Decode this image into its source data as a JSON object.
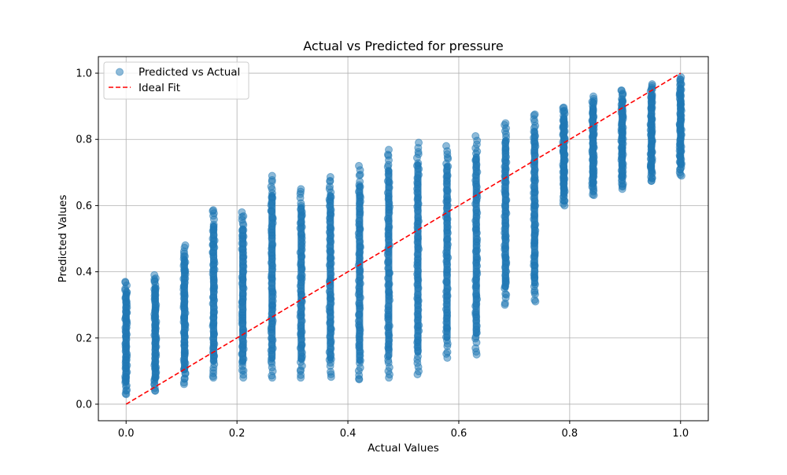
{
  "chart_data": {
    "type": "scatter",
    "title": "Actual vs Predicted for pressure",
    "xlabel": "Actual Values",
    "ylabel": "Predicted Values",
    "xlim": [
      -0.05,
      1.05
    ],
    "ylim": [
      -0.05,
      1.05
    ],
    "xticks": [
      "0.0",
      "0.2",
      "0.4",
      "0.6",
      "0.8",
      "1.0"
    ],
    "yticks": [
      "0.0",
      "0.2",
      "0.4",
      "0.6",
      "0.8",
      "1.0"
    ],
    "grid": true,
    "legend_position": "top-left",
    "series": [
      {
        "name": "Predicted vs Actual",
        "kind": "scatter",
        "color": "#1f77b4",
        "alpha": 0.5,
        "columns": [
          {
            "x": 0.0,
            "min": 0.03,
            "max": 0.37
          },
          {
            "x": 0.0526,
            "min": 0.04,
            "max": 0.39
          },
          {
            "x": 0.1053,
            "min": 0.06,
            "max": 0.48
          },
          {
            "x": 0.1579,
            "min": 0.08,
            "max": 0.59
          },
          {
            "x": 0.2105,
            "min": 0.08,
            "max": 0.58
          },
          {
            "x": 0.2632,
            "min": 0.08,
            "max": 0.69
          },
          {
            "x": 0.3158,
            "min": 0.08,
            "max": 0.65
          },
          {
            "x": 0.3684,
            "min": 0.08,
            "max": 0.69
          },
          {
            "x": 0.4211,
            "min": 0.07,
            "max": 0.72
          },
          {
            "x": 0.4737,
            "min": 0.08,
            "max": 0.77
          },
          {
            "x": 0.5263,
            "min": 0.09,
            "max": 0.79
          },
          {
            "x": 0.5789,
            "min": 0.14,
            "max": 0.78
          },
          {
            "x": 0.6316,
            "min": 0.15,
            "max": 0.81
          },
          {
            "x": 0.6842,
            "min": 0.3,
            "max": 0.85
          },
          {
            "x": 0.7368,
            "min": 0.31,
            "max": 0.88
          },
          {
            "x": 0.7895,
            "min": 0.6,
            "max": 0.9
          },
          {
            "x": 0.8421,
            "min": 0.63,
            "max": 0.93
          },
          {
            "x": 0.8947,
            "min": 0.65,
            "max": 0.95
          },
          {
            "x": 0.9474,
            "min": 0.67,
            "max": 0.97
          },
          {
            "x": 1.0,
            "min": 0.69,
            "max": 0.99
          }
        ]
      },
      {
        "name": "Ideal Fit",
        "kind": "line",
        "color": "#ff0000",
        "style": "dashed",
        "x": [
          0.0,
          1.0
        ],
        "y": [
          0.0,
          1.0
        ]
      }
    ]
  }
}
